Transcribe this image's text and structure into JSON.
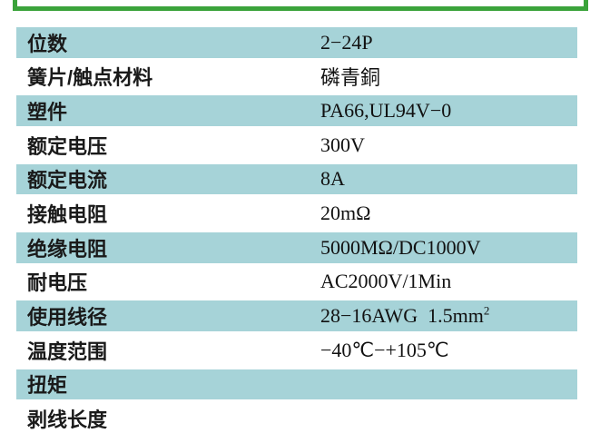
{
  "frame": {
    "border_color": "#3ba33b"
  },
  "table": {
    "shaded_row_color": "#a6d3d8",
    "plain_row_color": "#ffffff",
    "rows": [
      {
        "label": "位数",
        "value": "2−24P",
        "shaded": true
      },
      {
        "label": "簧片/触点材料",
        "value": "磷青銅",
        "shaded": false
      },
      {
        "label": "塑件",
        "value": "PA66,UL94V−0",
        "shaded": true
      },
      {
        "label": "额定电压",
        "value": "300V",
        "shaded": false
      },
      {
        "label": "额定电流",
        "value": "8A",
        "shaded": true
      },
      {
        "label": "接触电阻",
        "value": "20mΩ",
        "shaded": false
      },
      {
        "label": "绝缘电阻",
        "value": "5000MΩ/DC1000V",
        "shaded": true
      },
      {
        "label": "耐电压",
        "value": "AC2000V/1Min",
        "shaded": false
      },
      {
        "label": "使用线径",
        "value": "28−16AWG  1.5mm",
        "value_sup": "2",
        "shaded": true
      },
      {
        "label": "温度范围",
        "value": "−40℃−+105℃",
        "shaded": false
      },
      {
        "label": "扭矩",
        "value": "",
        "shaded": true
      },
      {
        "label": "剥线长度",
        "value": "",
        "shaded": false
      }
    ]
  }
}
